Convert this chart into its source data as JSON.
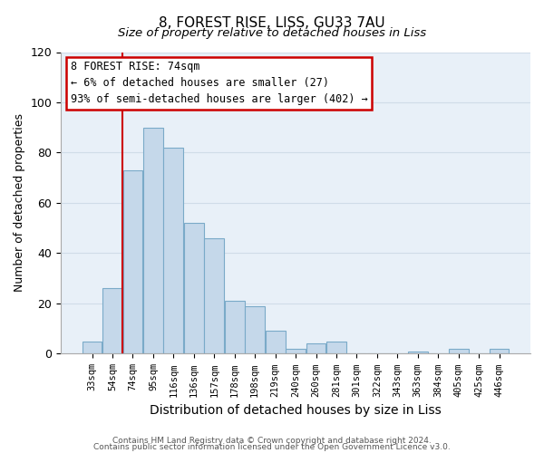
{
  "title": "8, FOREST RISE, LISS, GU33 7AU",
  "subtitle": "Size of property relative to detached houses in Liss",
  "xlabel": "Distribution of detached houses by size in Liss",
  "ylabel": "Number of detached properties",
  "bar_color": "#c5d8ea",
  "bar_edge_color": "#7aaac8",
  "bin_labels": [
    "33sqm",
    "54sqm",
    "74sqm",
    "95sqm",
    "116sqm",
    "136sqm",
    "157sqm",
    "178sqm",
    "198sqm",
    "219sqm",
    "240sqm",
    "260sqm",
    "281sqm",
    "301sqm",
    "322sqm",
    "343sqm",
    "363sqm",
    "384sqm",
    "405sqm",
    "425sqm",
    "446sqm"
  ],
  "bar_heights": [
    5,
    26,
    73,
    90,
    82,
    52,
    46,
    21,
    19,
    9,
    2,
    4,
    5,
    0,
    0,
    0,
    1,
    0,
    2,
    0,
    2
  ],
  "ylim": [
    0,
    120
  ],
  "yticks": [
    0,
    20,
    40,
    60,
    80,
    100,
    120
  ],
  "annotation_title": "8 FOREST RISE: 74sqm",
  "annotation_line1": "← 6% of detached houses are smaller (27)",
  "annotation_line2": "93% of semi-detached houses are larger (402) →",
  "annotation_box_color": "#ffffff",
  "annotation_box_edge_color": "#cc0000",
  "property_line_color": "#cc0000",
  "grid_color": "#d0dce8",
  "plot_bg_color": "#e8f0f8",
  "footnote1": "Contains HM Land Registry data © Crown copyright and database right 2024.",
  "footnote2": "Contains public sector information licensed under the Open Government Licence v3.0."
}
